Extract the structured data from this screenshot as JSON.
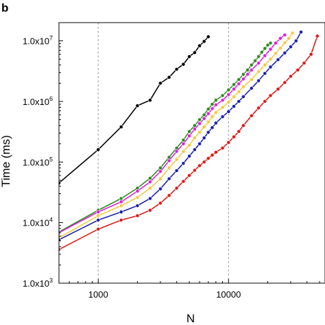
{
  "panel_label": "b",
  "chart_data": {
    "type": "line",
    "title": "",
    "xlabel": "N",
    "ylabel": "Time (ms)",
    "x_scale": "log",
    "y_scale": "log",
    "xlim": [
      500,
      55000
    ],
    "ylim": [
      1000,
      20000000
    ],
    "x_ticks": [
      1000,
      10000
    ],
    "x_tick_labels": [
      "1000",
      "10000"
    ],
    "y_ticks": [
      1000,
      10000,
      100000,
      1000000,
      10000000
    ],
    "y_tick_labels": [
      "1.0x10",
      "1.0x10",
      "1.0x10",
      "1.0x10",
      "1.0x10"
    ],
    "y_tick_exponents": [
      "3",
      "4",
      "5",
      "6",
      "7"
    ],
    "x_gridlines": [
      1000,
      10000
    ],
    "grid": "vertical dashed at x ticks",
    "legend": "none",
    "series": [
      {
        "color": "#000000",
        "points": [
          [
            500,
            45000
          ],
          [
            1000,
            160000
          ],
          [
            1500,
            380000
          ],
          [
            2000,
            850000
          ],
          [
            2500,
            1050000
          ],
          [
            3000,
            2000000
          ],
          [
            3500,
            2500000
          ],
          [
            4000,
            3400000
          ],
          [
            4500,
            4100000
          ],
          [
            5000,
            5500000
          ],
          [
            5500,
            6400000
          ],
          [
            6000,
            8300000
          ],
          [
            6500,
            9800000
          ],
          [
            7000,
            11700000
          ]
        ]
      },
      {
        "color": "#2e8b22",
        "points": [
          [
            500,
            7000
          ],
          [
            1000,
            16000
          ],
          [
            1500,
            25000
          ],
          [
            2000,
            37000
          ],
          [
            2500,
            54000
          ],
          [
            3000,
            80000
          ],
          [
            3500,
            120000
          ],
          [
            4000,
            170000
          ],
          [
            4500,
            230000
          ],
          [
            5000,
            320000
          ],
          [
            5500,
            400000
          ],
          [
            6000,
            500000
          ],
          [
            6500,
            600000
          ],
          [
            7000,
            750000
          ],
          [
            7500,
            900000
          ],
          [
            8000,
            1050000
          ],
          [
            9000,
            1250000
          ],
          [
            10000,
            1550000
          ],
          [
            11000,
            1900000
          ],
          [
            12000,
            2300000
          ],
          [
            13000,
            2800000
          ],
          [
            14000,
            3300000
          ],
          [
            15000,
            4000000
          ],
          [
            16000,
            4700000
          ],
          [
            17000,
            5500000
          ],
          [
            18000,
            6500000
          ],
          [
            19000,
            7500000
          ],
          [
            20000,
            8500000
          ],
          [
            21000,
            9200000
          ]
        ]
      },
      {
        "color": "#e020e0",
        "points": [
          [
            500,
            6800
          ],
          [
            1000,
            15000
          ],
          [
            1500,
            22000
          ],
          [
            2000,
            33000
          ],
          [
            2500,
            47000
          ],
          [
            3000,
            70000
          ],
          [
            3500,
            105000
          ],
          [
            4000,
            150000
          ],
          [
            4500,
            200000
          ],
          [
            5000,
            270000
          ],
          [
            5500,
            350000
          ],
          [
            6000,
            430000
          ],
          [
            6500,
            520000
          ],
          [
            7000,
            630000
          ],
          [
            7500,
            760000
          ],
          [
            8000,
            880000
          ],
          [
            9000,
            1050000
          ],
          [
            10000,
            1300000
          ],
          [
            11000,
            1600000
          ],
          [
            12000,
            1950000
          ],
          [
            13000,
            2350000
          ],
          [
            14000,
            2800000
          ],
          [
            15000,
            3300000
          ],
          [
            17000,
            4300000
          ],
          [
            19000,
            5700000
          ],
          [
            21000,
            7300000
          ],
          [
            23000,
            9200000
          ],
          [
            25000,
            11000000
          ],
          [
            27000,
            12500000
          ]
        ]
      },
      {
        "color": "#f5c842",
        "points": [
          [
            500,
            5600
          ],
          [
            1000,
            13000
          ],
          [
            1500,
            19000
          ],
          [
            2000,
            26000
          ],
          [
            2500,
            37000
          ],
          [
            3000,
            53000
          ],
          [
            3500,
            80000
          ],
          [
            4000,
            110000
          ],
          [
            4500,
            150000
          ],
          [
            5000,
            190000
          ],
          [
            5500,
            250000
          ],
          [
            6000,
            310000
          ],
          [
            6500,
            380000
          ],
          [
            7000,
            460000
          ],
          [
            7500,
            560000
          ],
          [
            8000,
            660000
          ],
          [
            9000,
            800000
          ],
          [
            10000,
            970000
          ],
          [
            11000,
            1200000
          ],
          [
            12000,
            1450000
          ],
          [
            13000,
            1750000
          ],
          [
            15000,
            2300000
          ],
          [
            17000,
            3100000
          ],
          [
            19000,
            4000000
          ],
          [
            21000,
            5000000
          ],
          [
            23000,
            6200000
          ],
          [
            25000,
            7600000
          ],
          [
            27000,
            9300000
          ],
          [
            29000,
            11000000
          ],
          [
            31000,
            13500000
          ]
        ]
      },
      {
        "color": "#1a22b0",
        "points": [
          [
            500,
            5200
          ],
          [
            1000,
            11000
          ],
          [
            1500,
            15000
          ],
          [
            2000,
            19000
          ],
          [
            2500,
            25000
          ],
          [
            3000,
            36000
          ],
          [
            3500,
            53000
          ],
          [
            4000,
            72000
          ],
          [
            4500,
            95000
          ],
          [
            5000,
            125000
          ],
          [
            5500,
            160000
          ],
          [
            6000,
            200000
          ],
          [
            6500,
            250000
          ],
          [
            7000,
            310000
          ],
          [
            7500,
            370000
          ],
          [
            8000,
            440000
          ],
          [
            9000,
            560000
          ],
          [
            10000,
            680000
          ],
          [
            11000,
            830000
          ],
          [
            12000,
            1000000
          ],
          [
            13000,
            1200000
          ],
          [
            15000,
            1650000
          ],
          [
            17000,
            2200000
          ],
          [
            19000,
            2900000
          ],
          [
            21000,
            3700000
          ],
          [
            24000,
            4900000
          ],
          [
            27000,
            6300000
          ],
          [
            30000,
            8000000
          ],
          [
            33000,
            10000000
          ],
          [
            36000,
            14000000
          ]
        ]
      },
      {
        "color": "#e01818",
        "points": [
          [
            500,
            3600
          ],
          [
            1000,
            7800
          ],
          [
            1500,
            11000
          ],
          [
            2000,
            13000
          ],
          [
            2500,
            16000
          ],
          [
            3000,
            21000
          ],
          [
            3500,
            28000
          ],
          [
            4000,
            37000
          ],
          [
            4500,
            48000
          ],
          [
            5000,
            60000
          ],
          [
            5500,
            73000
          ],
          [
            6000,
            87000
          ],
          [
            6500,
            100000
          ],
          [
            7000,
            115000
          ],
          [
            7500,
            130000
          ],
          [
            8000,
            145000
          ],
          [
            9000,
            170000
          ],
          [
            10000,
            210000
          ],
          [
            11000,
            260000
          ],
          [
            12000,
            320000
          ],
          [
            13000,
            400000
          ],
          [
            15000,
            580000
          ],
          [
            17000,
            780000
          ],
          [
            19000,
            1000000
          ],
          [
            21000,
            1250000
          ],
          [
            24000,
            1600000
          ],
          [
            27000,
            2050000
          ],
          [
            30000,
            2600000
          ],
          [
            34000,
            3300000
          ],
          [
            38000,
            4300000
          ],
          [
            43000,
            6000000
          ],
          [
            48000,
            12000000
          ]
        ]
      }
    ]
  }
}
